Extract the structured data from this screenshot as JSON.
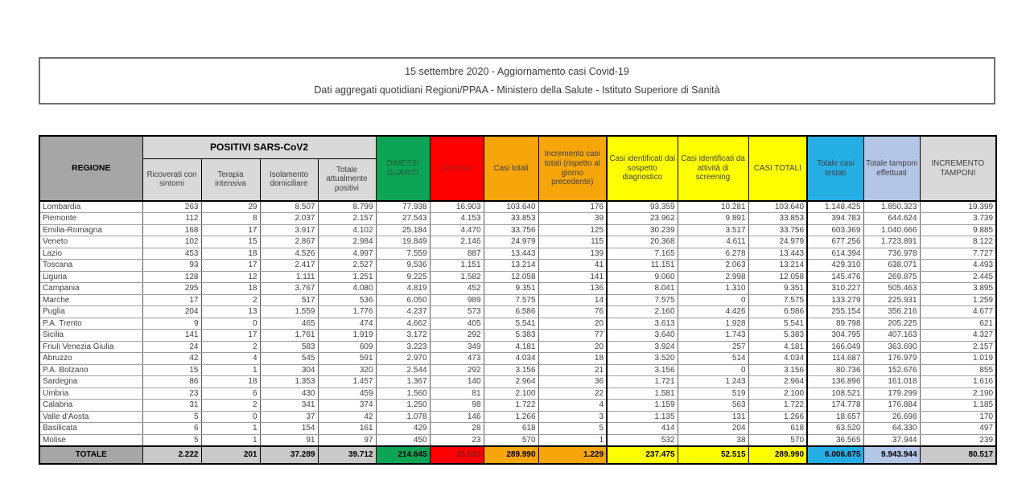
{
  "title_box": {
    "line1": "15 settembre 2020 - Aggiornamento casi Covid-19",
    "line2": "Dati aggregati quotidiani Regioni/PPAA - Ministero della Salute - Istituto Superiore di Sanità"
  },
  "table": {
    "region_header": "REGIONE",
    "group_header": "POSITIVI SARS-CoV2",
    "columns": [
      {
        "label": "Ricoverati con sintomi",
        "header_bg": "#D9D9D9",
        "header_fg": "#404040",
        "total_bg": "#C9C9C9",
        "total_fg": "#000000",
        "thick_left": false
      },
      {
        "label": "Terapia intensiva",
        "header_bg": "#D9D9D9",
        "header_fg": "#404040",
        "total_bg": "#C9C9C9",
        "total_fg": "#000000",
        "thick_left": false
      },
      {
        "label": "Isolamento domiciliare",
        "header_bg": "#D9D9D9",
        "header_fg": "#404040",
        "total_bg": "#C9C9C9",
        "total_fg": "#000000",
        "thick_left": false
      },
      {
        "label": "Totale attualmente positivi",
        "header_bg": "#D9D9D9",
        "header_fg": "#404040",
        "total_bg": "#C9C9C9",
        "total_fg": "#000000",
        "thick_left": false
      },
      {
        "label": "DIMESSI GUARITI",
        "header_bg": "#0EA455",
        "header_fg": "#1C5A38",
        "total_bg": "#0EA455",
        "total_fg": "#000000",
        "thick_left": false
      },
      {
        "label": "Deceduti",
        "header_bg": "#FF0000",
        "header_fg": "#9A2020",
        "total_bg": "#FF0000",
        "total_fg": "#8B1A1A",
        "thick_left": false
      },
      {
        "label": "Casi totali",
        "header_bg": "#F6A50B",
        "header_fg": "#404040",
        "total_bg": "#F6A50B",
        "total_fg": "#000000",
        "thick_left": false
      },
      {
        "label": "Incremento casi totali (rispetto al giorno precedente)",
        "header_bg": "#F6A50B",
        "header_fg": "#404040",
        "total_bg": "#F6A50B",
        "total_fg": "#000000",
        "thick_left": false
      },
      {
        "label": "Casi identificati dal sospetto diagnostico",
        "header_bg": "#FFFF00",
        "header_fg": "#404040",
        "total_bg": "#FFFF00",
        "total_fg": "#000000",
        "thick_left": true
      },
      {
        "label": "Casi identificati da attività di screening",
        "header_bg": "#FFFF00",
        "header_fg": "#404040",
        "total_bg": "#FFFF00",
        "total_fg": "#000000",
        "thick_left": false
      },
      {
        "label": "CASI TOTALI",
        "header_bg": "#FFFF00",
        "header_fg": "#404040",
        "total_bg": "#FFFF00",
        "total_fg": "#000000",
        "thick_left": false
      },
      {
        "label": "Totale casi testati",
        "header_bg": "#24AEE4",
        "header_fg": "#404040",
        "total_bg": "#24AEE4",
        "total_fg": "#000000",
        "thick_left": true
      },
      {
        "label": "Totale tamponi effettuati",
        "header_bg": "#B4C6E7",
        "header_fg": "#404040",
        "total_bg": "#B4C6E7",
        "total_fg": "#000000",
        "thick_left": false
      },
      {
        "label": "INCREMENTO TAMPONI",
        "header_bg": "#D9D9D9",
        "header_fg": "#404040",
        "total_bg": "#C9C9C9",
        "total_fg": "#000000",
        "thick_left": false
      }
    ],
    "rows": [
      {
        "region": "Lombardia",
        "values": [
          "263",
          "29",
          "8.507",
          "8.799",
          "77.938",
          "16.903",
          "103.640",
          "176",
          "93.359",
          "10.281",
          "103.640",
          "1.148.425",
          "1.850.323",
          "19.399"
        ]
      },
      {
        "region": "Piemonte",
        "values": [
          "112",
          "8",
          "2.037",
          "2.157",
          "27.543",
          "4.153",
          "33.853",
          "39",
          "23.962",
          "9.891",
          "33.853",
          "394.783",
          "644.624",
          "3.739"
        ]
      },
      {
        "region": "Emilia-Romagna",
        "values": [
          "168",
          "17",
          "3.917",
          "4.102",
          "25.184",
          "4.470",
          "33.756",
          "125",
          "30.239",
          "3.517",
          "33.756",
          "603.369",
          "1.040.666",
          "9.885"
        ]
      },
      {
        "region": "Veneto",
        "values": [
          "102",
          "15",
          "2.867",
          "2.984",
          "19.849",
          "2.146",
          "24.979",
          "115",
          "20.368",
          "4.611",
          "24.979",
          "677.256",
          "1.723.891",
          "8.122"
        ]
      },
      {
        "region": "Lazio",
        "values": [
          "453",
          "18",
          "4.526",
          "4.997",
          "7.559",
          "887",
          "13.443",
          "139",
          "7.165",
          "6.278",
          "13.443",
          "614.394",
          "736.978",
          "7.727"
        ]
      },
      {
        "region": "Toscana",
        "values": [
          "93",
          "17",
          "2.417",
          "2.527",
          "9.536",
          "1.151",
          "13.214",
          "41",
          "11.151",
          "2.063",
          "13.214",
          "429.310",
          "638.071",
          "4.493"
        ]
      },
      {
        "region": "Liguria",
        "values": [
          "128",
          "12",
          "1.111",
          "1.251",
          "9.225",
          "1.582",
          "12.058",
          "141",
          "9.060",
          "2.998",
          "12.058",
          "145.476",
          "269.875",
          "2.445"
        ]
      },
      {
        "region": "Campania",
        "values": [
          "295",
          "18",
          "3.767",
          "4.080",
          "4.819",
          "452",
          "9.351",
          "136",
          "8.041",
          "1.310",
          "9.351",
          "310.227",
          "505.463",
          "3.895"
        ]
      },
      {
        "region": "Marche",
        "values": [
          "17",
          "2",
          "517",
          "536",
          "6.050",
          "989",
          "7.575",
          "14",
          "7.575",
          "0",
          "7.575",
          "133.279",
          "225.931",
          "1.259"
        ]
      },
      {
        "region": "Puglia",
        "values": [
          "204",
          "13",
          "1.559",
          "1.776",
          "4.237",
          "573",
          "6.586",
          "76",
          "2.160",
          "4.426",
          "6.586",
          "255.154",
          "356.216",
          "4.677"
        ]
      },
      {
        "region": "P.A. Trento",
        "values": [
          "9",
          "0",
          "465",
          "474",
          "4.662",
          "405",
          "5.541",
          "20",
          "3.613",
          "1.928",
          "5.541",
          "89.798",
          "205.225",
          "621"
        ]
      },
      {
        "region": "Sicilia",
        "values": [
          "141",
          "17",
          "1.761",
          "1.919",
          "3.172",
          "292",
          "5.383",
          "77",
          "3.640",
          "1.743",
          "5.383",
          "304.795",
          "407.163",
          "4.327"
        ]
      },
      {
        "region": "Friuli Venezia Giulia",
        "values": [
          "24",
          "2",
          "583",
          "609",
          "3.223",
          "349",
          "4.181",
          "20",
          "3.924",
          "257",
          "4.181",
          "166.049",
          "363.690",
          "2.157"
        ]
      },
      {
        "region": "Abruzzo",
        "values": [
          "42",
          "4",
          "545",
          "591",
          "2.970",
          "473",
          "4.034",
          "18",
          "3.520",
          "514",
          "4.034",
          "114.687",
          "176.979",
          "1.019"
        ]
      },
      {
        "region": "P.A. Bolzano",
        "values": [
          "15",
          "1",
          "304",
          "320",
          "2.544",
          "292",
          "3.156",
          "21",
          "3.156",
          "0",
          "3.156",
          "80.736",
          "152.676",
          "855"
        ]
      },
      {
        "region": "Sardegna",
        "values": [
          "86",
          "18",
          "1.353",
          "1.457",
          "1.367",
          "140",
          "2.964",
          "36",
          "1.721",
          "1.243",
          "2.964",
          "136.896",
          "161.018",
          "1.616"
        ]
      },
      {
        "region": "Umbria",
        "values": [
          "23",
          "6",
          "430",
          "459",
          "1.560",
          "81",
          "2.100",
          "22",
          "1.581",
          "519",
          "2.100",
          "108.521",
          "179.299",
          "2.190"
        ]
      },
      {
        "region": "Calabria",
        "values": [
          "31",
          "2",
          "341",
          "374",
          "1.250",
          "98",
          "1.722",
          "4",
          "1.159",
          "563",
          "1.722",
          "174.778",
          "176.884",
          "1.185"
        ]
      },
      {
        "region": "Valle d'Aosta",
        "values": [
          "5",
          "0",
          "37",
          "42",
          "1.078",
          "146",
          "1.266",
          "3",
          "1.135",
          "131",
          "1.266",
          "18.657",
          "26.698",
          "170"
        ]
      },
      {
        "region": "Basilicata",
        "values": [
          "6",
          "1",
          "154",
          "161",
          "429",
          "28",
          "618",
          "5",
          "414",
          "204",
          "618",
          "63.520",
          "64.330",
          "497"
        ]
      },
      {
        "region": "Molise",
        "values": [
          "5",
          "1",
          "91",
          "97",
          "450",
          "23",
          "570",
          "1",
          "532",
          "38",
          "570",
          "36.565",
          "37.944",
          "239"
        ]
      }
    ],
    "total": {
      "label": "TOTALE",
      "label_bg": "#A6A6A6",
      "values": [
        "2.222",
        "201",
        "37.289",
        "39.712",
        "214.645",
        "35.633",
        "289.990",
        "1.229",
        "237.475",
        "52.515",
        "289.990",
        "6.006.675",
        "9.943.944",
        "80.517"
      ]
    },
    "region_header_bg": "#A6A6A6",
    "group_header_bg": "#D9D9D9"
  }
}
